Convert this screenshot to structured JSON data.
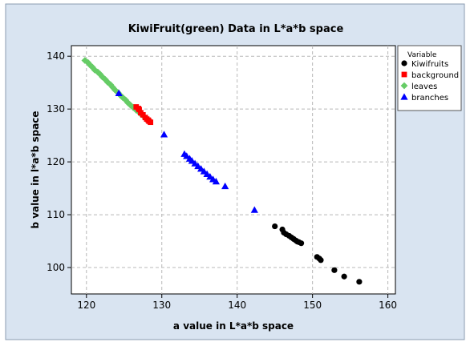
{
  "chart_data": {
    "type": "scatter",
    "title": "KiwiFruit(green) Data in L*a*b space",
    "xlabel": "a value in L*a*b space",
    "ylabel": "b value in l*a*b space",
    "xlim": [
      118,
      161
    ],
    "ylim": [
      95,
      142
    ],
    "x_ticks": [
      120,
      130,
      140,
      150,
      160
    ],
    "y_ticks": [
      100,
      110,
      120,
      130,
      140
    ],
    "grid": true,
    "legend_title": "Variable",
    "legend_position": "top-right",
    "series": [
      {
        "name": "Kiwifruits",
        "marker": "circle",
        "color": "#000000",
        "points": [
          [
            145.0,
            107.8
          ],
          [
            146.0,
            107.2
          ],
          [
            146.2,
            106.6
          ],
          [
            146.5,
            106.3
          ],
          [
            146.9,
            106.0
          ],
          [
            147.2,
            105.7
          ],
          [
            147.5,
            105.4
          ],
          [
            147.8,
            105.1
          ],
          [
            148.2,
            104.8
          ],
          [
            148.5,
            104.6
          ],
          [
            148.0,
            104.9
          ],
          [
            150.6,
            102.0
          ],
          [
            150.9,
            101.7
          ],
          [
            151.1,
            101.4
          ],
          [
            152.9,
            99.5
          ],
          [
            154.2,
            98.3
          ],
          [
            156.2,
            97.3
          ]
        ]
      },
      {
        "name": "background",
        "marker": "square",
        "color": "#ff0000",
        "points": [
          [
            126.6,
            130.4
          ],
          [
            127.0,
            129.9
          ],
          [
            126.9,
            130.1
          ],
          [
            127.2,
            129.3
          ],
          [
            127.5,
            128.9
          ],
          [
            127.8,
            128.4
          ],
          [
            128.0,
            128.1
          ],
          [
            128.3,
            127.7
          ],
          [
            128.5,
            127.5
          ],
          [
            128.2,
            127.9
          ]
        ]
      },
      {
        "name": "leaves",
        "marker": "diamond",
        "color": "#66cc66",
        "points": [
          [
            119.8,
            139.2
          ],
          [
            120.2,
            138.8
          ],
          [
            120.5,
            138.3
          ],
          [
            120.8,
            137.9
          ],
          [
            121.1,
            137.4
          ],
          [
            121.5,
            137.0
          ],
          [
            121.8,
            136.6
          ],
          [
            122.1,
            136.1
          ],
          [
            122.5,
            135.6
          ],
          [
            122.8,
            135.1
          ],
          [
            123.2,
            134.6
          ],
          [
            123.5,
            134.1
          ],
          [
            123.8,
            133.6
          ],
          [
            124.2,
            133.1
          ],
          [
            124.5,
            132.6
          ],
          [
            124.8,
            132.2
          ],
          [
            125.2,
            131.7
          ],
          [
            125.5,
            131.2
          ],
          [
            125.8,
            130.8
          ],
          [
            126.2,
            130.3
          ],
          [
            126.6,
            129.8
          ],
          [
            127.1,
            129.2
          ],
          [
            127.6,
            128.6
          ]
        ]
      },
      {
        "name": "branches",
        "marker": "triangle",
        "color": "#0000ff",
        "points": [
          [
            124.3,
            133.0
          ],
          [
            130.3,
            125.2
          ],
          [
            133.0,
            121.5
          ],
          [
            133.3,
            121.1
          ],
          [
            133.7,
            120.6
          ],
          [
            134.0,
            120.2
          ],
          [
            134.4,
            119.7
          ],
          [
            134.8,
            119.2
          ],
          [
            135.2,
            118.7
          ],
          [
            135.6,
            118.2
          ],
          [
            136.0,
            117.7
          ],
          [
            136.4,
            117.2
          ],
          [
            136.8,
            116.7
          ],
          [
            137.2,
            116.3
          ],
          [
            138.4,
            115.4
          ],
          [
            142.3,
            110.9
          ]
        ]
      }
    ]
  }
}
